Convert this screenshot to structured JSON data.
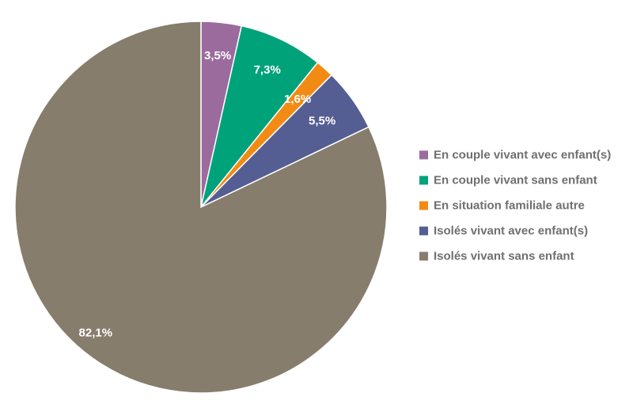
{
  "chart_data": {
    "type": "pie",
    "title": "",
    "start_angle": "12 o'clock",
    "direction": "clockwise",
    "legend_position": "right",
    "slices": [
      {
        "name": "En couple vivant avec enfant(s)",
        "value": 3.5,
        "label": "3,5%",
        "color": "#9b6b9e"
      },
      {
        "name": "En couple vivant sans enfant",
        "value": 7.3,
        "label": "7,3%",
        "color": "#00a27a"
      },
      {
        "name": "En situation familiale autre",
        "value": 1.6,
        "label": "1,6%",
        "color": "#f28b14"
      },
      {
        "name": "Isolés vivant avec enfant(s)",
        "value": 5.5,
        "label": "5,5%",
        "color": "#555e92"
      },
      {
        "name": "Isolés vivant sans enfant",
        "value": 82.1,
        "label": "82,1%",
        "color": "#877d6d"
      }
    ]
  }
}
